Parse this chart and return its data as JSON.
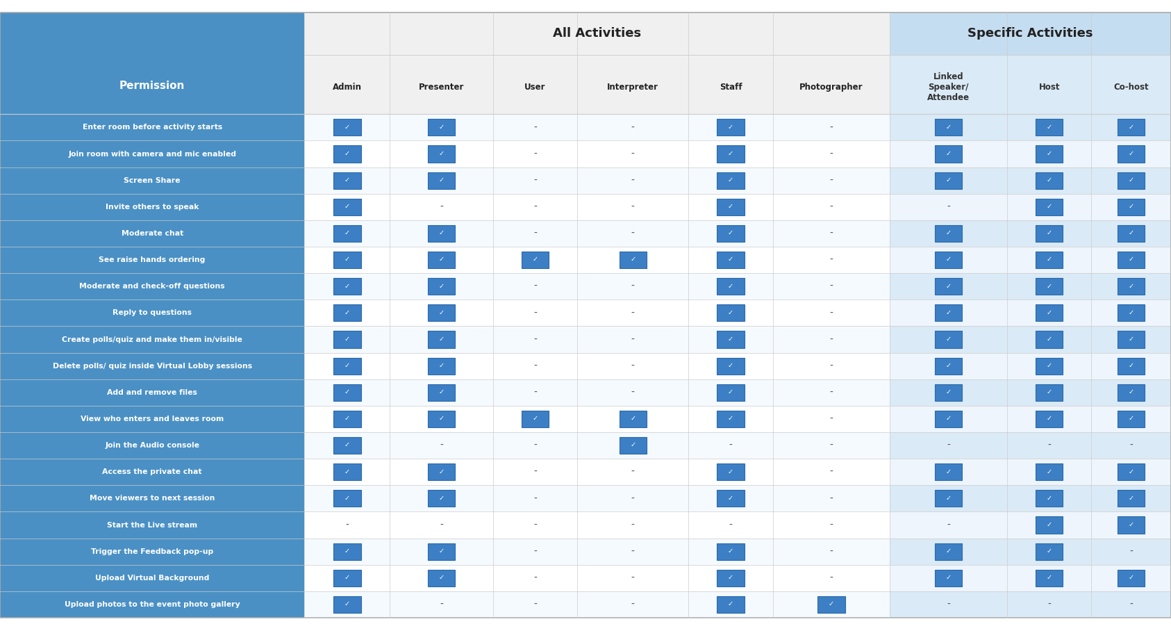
{
  "title_all": "All Activities",
  "title_specific": "Specific Activities",
  "header_row": [
    "Permission",
    "Admin",
    "Presenter",
    "User",
    "Interpreter",
    "Staff",
    "Photographer",
    "Linked\nSpeaker/\nAttendee",
    "Host",
    "Co-host"
  ],
  "rows": [
    [
      "Enter room before activity starts",
      1,
      1,
      0,
      0,
      1,
      0,
      1,
      1,
      1
    ],
    [
      "Join room with camera and mic enabled",
      1,
      1,
      0,
      0,
      1,
      0,
      1,
      1,
      1
    ],
    [
      "Screen Share",
      1,
      1,
      0,
      0,
      1,
      0,
      1,
      1,
      1
    ],
    [
      "Invite others to speak",
      1,
      0,
      0,
      0,
      1,
      0,
      0,
      1,
      1
    ],
    [
      "Moderate chat",
      1,
      1,
      0,
      0,
      1,
      0,
      1,
      1,
      1
    ],
    [
      "See raise hands ordering",
      1,
      1,
      1,
      1,
      1,
      0,
      1,
      1,
      1
    ],
    [
      "Moderate and check-off questions",
      1,
      1,
      0,
      0,
      1,
      0,
      1,
      1,
      1
    ],
    [
      "Reply to questions",
      1,
      1,
      0,
      0,
      1,
      0,
      1,
      1,
      1
    ],
    [
      "Create polls/quiz and make them in/visible",
      1,
      1,
      0,
      0,
      1,
      0,
      1,
      1,
      1
    ],
    [
      "Delete polls/ quiz inside Virtual Lobby sessions",
      1,
      1,
      0,
      0,
      1,
      0,
      1,
      1,
      1
    ],
    [
      "Add and remove files",
      1,
      1,
      0,
      0,
      1,
      0,
      1,
      1,
      1
    ],
    [
      "View who enters and leaves room",
      1,
      1,
      1,
      1,
      1,
      0,
      1,
      1,
      1
    ],
    [
      "Join the Audio console",
      1,
      0,
      0,
      1,
      0,
      0,
      0,
      0,
      0
    ],
    [
      "Access the private chat",
      1,
      1,
      0,
      0,
      1,
      0,
      1,
      1,
      1
    ],
    [
      "Move viewers to next session",
      1,
      1,
      0,
      0,
      1,
      0,
      1,
      1,
      1
    ],
    [
      "Start the Live stream",
      0,
      0,
      0,
      0,
      0,
      0,
      0,
      1,
      1
    ],
    [
      "Trigger the Feedback pop-up",
      1,
      1,
      0,
      0,
      1,
      0,
      1,
      1,
      0
    ],
    [
      "Upload Virtual Background",
      1,
      1,
      0,
      0,
      1,
      0,
      1,
      1,
      1
    ],
    [
      "Upload photos to the event photo gallery",
      1,
      0,
      0,
      0,
      1,
      1,
      0,
      0,
      0
    ]
  ],
  "col_bg_permission": "#4a90c4",
  "col_bg_banner_all": "#f0f0f0",
  "col_bg_banner_specific": "#c5ddf0",
  "col_bg_header_all": "#f0f0f0",
  "col_bg_header_specific": "#daeaf6",
  "col_bg_row_perm": "#4a90c4",
  "col_bg_data_odd": "#f5faff",
  "col_bg_data_even": "#ffffff",
  "col_bg_data_spec_odd": "#daeaf6",
  "col_bg_data_spec_even": "#eef5fc",
  "col_check_fill": "#3d7fc4",
  "col_check_border": "#2a6aaa",
  "col_text_white": "#ffffff",
  "col_text_dark": "#222222",
  "col_text_header_all": "#222222",
  "col_text_header_spec": "#333333",
  "col_text_perm_row": "#ffffff",
  "col_border": "#cccccc",
  "col_border_outer": "#aaaaaa",
  "check_symbol": "✓",
  "dash_symbol": "-"
}
